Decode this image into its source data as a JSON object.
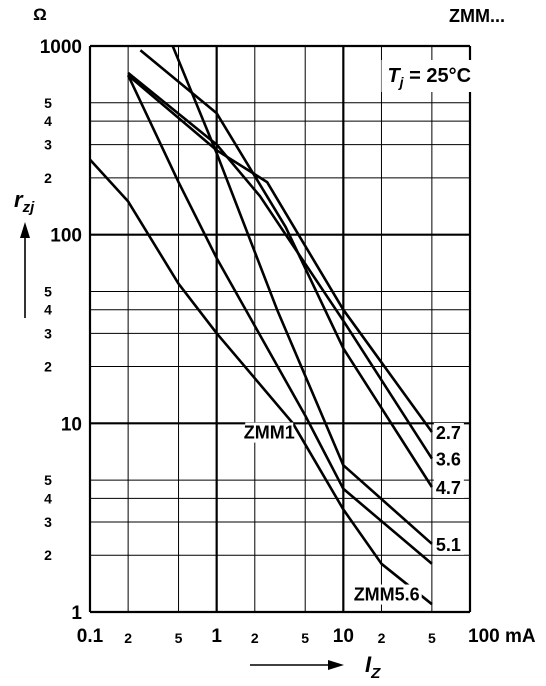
{
  "chart_data": {
    "type": "line",
    "title": "ZMM...",
    "annotation": "Tj = 25°C",
    "annotation_parts": {
      "symbol": "T",
      "subscript": "j",
      "rest": " = 25°C"
    },
    "unit_top": "Ω",
    "x_axis": {
      "scale": "log",
      "range": [
        0.1,
        100
      ],
      "unit": "mA",
      "label_symbol": "I",
      "label_subscript": "Z",
      "major_ticks": [
        {
          "value": 0.1,
          "label": "0.1"
        },
        {
          "value": 1,
          "label": "1"
        },
        {
          "value": 10,
          "label": "10"
        },
        {
          "value": 100,
          "label": "100 mA"
        }
      ],
      "minor_ticks": [
        {
          "value": 0.2,
          "label": "2"
        },
        {
          "value": 0.5,
          "label": "5"
        },
        {
          "value": 2,
          "label": "2"
        },
        {
          "value": 5,
          "label": "5"
        },
        {
          "value": 20,
          "label": "2"
        },
        {
          "value": 50,
          "label": "5"
        }
      ]
    },
    "y_axis": {
      "scale": "log",
      "range": [
        1,
        1000
      ],
      "label_symbol": "r",
      "label_subscript": "zj",
      "major_ticks": [
        {
          "value": 1,
          "label": "1"
        },
        {
          "value": 10,
          "label": "10"
        },
        {
          "value": 100,
          "label": "100"
        },
        {
          "value": 1000,
          "label": "1000"
        }
      ],
      "minor_ticks": [
        {
          "value": 2,
          "label": "2"
        },
        {
          "value": 3,
          "label": "3"
        },
        {
          "value": 4,
          "label": "4"
        },
        {
          "value": 5,
          "label": "5"
        },
        {
          "value": 20,
          "label": "2"
        },
        {
          "value": 30,
          "label": "3"
        },
        {
          "value": 40,
          "label": "4"
        },
        {
          "value": 50,
          "label": "5"
        },
        {
          "value": 200,
          "label": "2"
        },
        {
          "value": 300,
          "label": "3"
        },
        {
          "value": 400,
          "label": "4"
        },
        {
          "value": 500,
          "label": "5"
        }
      ]
    },
    "grid": true,
    "series": [
      {
        "name": "2.7",
        "points": [
          [
            0.2,
            700
          ],
          [
            1,
            280
          ],
          [
            2.5,
            190
          ],
          [
            10,
            40
          ],
          [
            50,
            9
          ]
        ]
      },
      {
        "name": "3.6",
        "points": [
          [
            0.2,
            720
          ],
          [
            1,
            300
          ],
          [
            2.2,
            160
          ],
          [
            10,
            35
          ],
          [
            50,
            6.5
          ]
        ]
      },
      {
        "name": "4.7",
        "points": [
          [
            0.25,
            950
          ],
          [
            1,
            440
          ],
          [
            3.5,
            110
          ],
          [
            10,
            25
          ],
          [
            50,
            4.6
          ]
        ]
      },
      {
        "name": "5.1",
        "points": [
          [
            0.45,
            1000
          ],
          [
            1,
            270
          ],
          [
            3,
            40
          ],
          [
            10,
            6
          ],
          [
            50,
            2.3
          ]
        ]
      },
      {
        "name": "ZMM1",
        "points": [
          [
            0.2,
            700
          ],
          [
            0.5,
            190
          ],
          [
            1,
            75
          ],
          [
            5,
            11
          ],
          [
            10,
            4.5
          ],
          [
            50,
            1.8
          ]
        ]
      },
      {
        "name": "ZMM5.6",
        "points": [
          [
            0.1,
            250
          ],
          [
            0.2,
            150
          ],
          [
            0.5,
            55
          ],
          [
            1,
            30
          ],
          [
            4,
            10
          ],
          [
            10,
            3.5
          ],
          [
            20,
            1.8
          ],
          [
            50,
            1.1
          ]
        ]
      }
    ],
    "series_labels": [
      {
        "series": "2.7",
        "text": "2.7"
      },
      {
        "series": "3.6",
        "text": "3.6"
      },
      {
        "series": "4.7",
        "text": "4.7"
      },
      {
        "series": "5.1",
        "text": "5.1"
      },
      {
        "series": "ZMM1",
        "text": "ZMM1"
      },
      {
        "series": "ZMM5.6",
        "text": "ZMM5.6"
      }
    ]
  }
}
